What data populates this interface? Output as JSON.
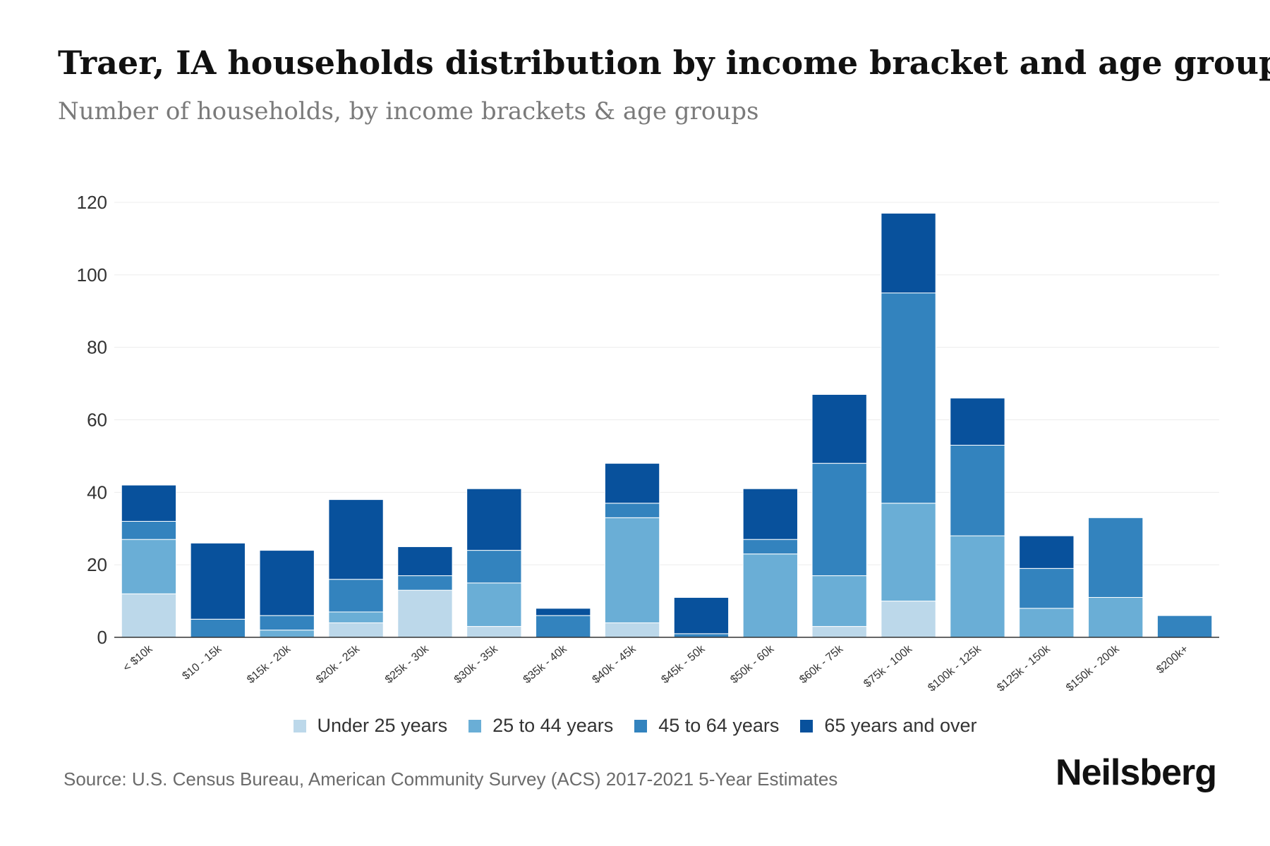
{
  "header": {
    "title": "Traer, IA households distribution by income bracket and age group",
    "subtitle": "Number of households, by income brackets & age groups"
  },
  "footer": {
    "source": "Source: U.S. Census Bureau, American Community Survey (ACS) 2017-2021 5-Year Estimates",
    "logo": "Neilsberg"
  },
  "chart_data": {
    "type": "bar",
    "stacked": true,
    "categories": [
      "< $10k",
      "$10 - 15k",
      "$15k - 20k",
      "$20k - 25k",
      "$25k - 30k",
      "$30k - 35k",
      "$35k - 40k",
      "$40k - 45k",
      "$45k - 50k",
      "$50k - 60k",
      "$60k - 75k",
      "$75k - 100k",
      "$100k - 125k",
      "$125k - 150k",
      "$150k - 200k",
      "$200k+"
    ],
    "series": [
      {
        "name": "Under 25 years",
        "color": "#bcd8ea",
        "values": [
          12,
          0,
          0,
          4,
          13,
          3,
          0,
          4,
          0,
          0,
          3,
          10,
          0,
          0,
          0,
          0
        ]
      },
      {
        "name": "25 to 44 years",
        "color": "#6aaed6",
        "values": [
          15,
          0,
          2,
          3,
          0,
          12,
          0,
          29,
          0,
          23,
          14,
          27,
          28,
          8,
          11,
          0
        ]
      },
      {
        "name": "45 to 64 years",
        "color": "#3383be",
        "values": [
          5,
          5,
          4,
          9,
          4,
          9,
          6,
          4,
          1,
          4,
          31,
          58,
          25,
          11,
          22,
          6
        ]
      },
      {
        "name": "65 years and over",
        "color": "#08519c",
        "values": [
          10,
          21,
          18,
          22,
          8,
          17,
          2,
          11,
          10,
          14,
          19,
          22,
          13,
          9,
          0,
          0
        ]
      }
    ],
    "yticks": [
      0,
      20,
      40,
      60,
      80,
      100,
      120
    ],
    "ylim": [
      0,
      120
    ],
    "grid": true,
    "legend": "bottom"
  }
}
